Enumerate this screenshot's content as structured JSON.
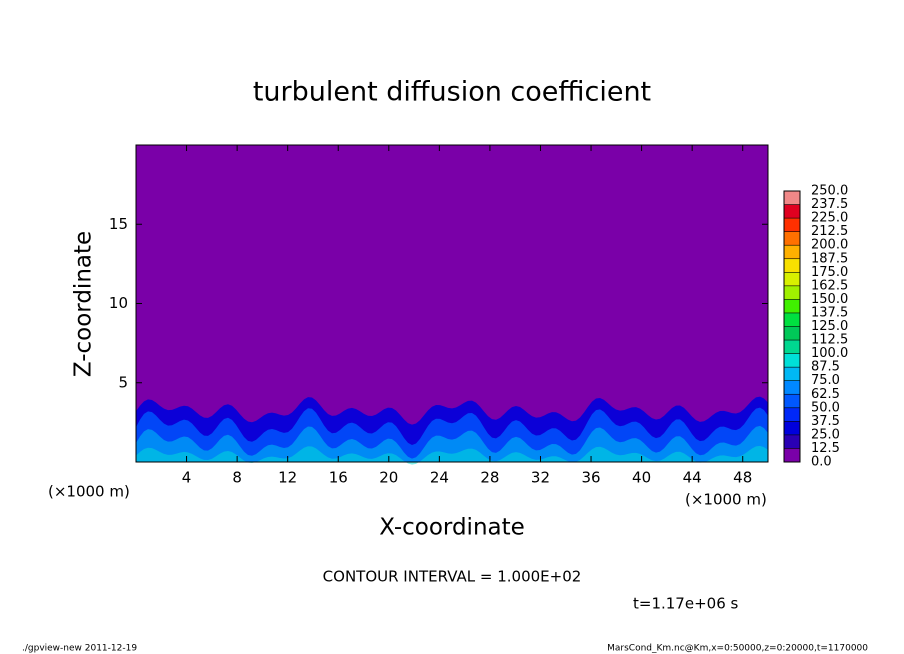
{
  "chart_data": {
    "type": "contour",
    "title": "turbulent diffusion coefficient",
    "x_label": "X-coordinate",
    "y_label": "Z-coordinate",
    "x_unit_label": "(×1000 m)",
    "y_unit_label": "(×1000 m)",
    "xlim": [
      0,
      50
    ],
    "ylim": [
      0,
      20
    ],
    "xticks": [
      4,
      8,
      12,
      16,
      20,
      24,
      28,
      32,
      36,
      40,
      44,
      48
    ],
    "yticks": [
      5,
      10,
      15
    ],
    "colorbar": {
      "levels": [
        {
          "value": 0,
          "label": "0.0"
        },
        12.5,
        {
          "value": 25,
          "label": "25.0"
        },
        37.5,
        {
          "value": 50,
          "label": "50.0"
        },
        62.5,
        {
          "value": 75,
          "label": "75.0"
        },
        87.5,
        {
          "value": 100,
          "label": "100.0"
        },
        112.5,
        {
          "value": 125,
          "label": "125.0"
        },
        137.5,
        {
          "value": 150,
          "label": "150.0"
        },
        162.5,
        {
          "value": 175,
          "label": "175.0"
        },
        187.5,
        {
          "value": 200,
          "label": "200.0"
        },
        212.5,
        {
          "value": 225,
          "label": "225.0"
        },
        237.5,
        {
          "value": 250,
          "label": "250.0"
        }
      ],
      "colors": [
        "#7a00a8",
        "#2a00b4",
        "#0000dc",
        "#0028f8",
        "#0058ff",
        "#0088ff",
        "#00b8f4",
        "#00e0d8",
        "#00d890",
        "#00c858",
        "#00e040",
        "#40f000",
        "#a0f000",
        "#d8f000",
        "#f8e000",
        "#ffb000",
        "#ff7000",
        "#ff3000",
        "#e00020",
        "#f08888"
      ]
    },
    "annotation": "CONTOUR INTERVAL = 1.000E+02",
    "time_label": "t=1.17e+06 s",
    "footer_left": "./gpview-new   2011-12-19",
    "footer_right": "MarsCond_Km.nc@Km,x=0:50000,z=0:20000,t=1170000"
  }
}
